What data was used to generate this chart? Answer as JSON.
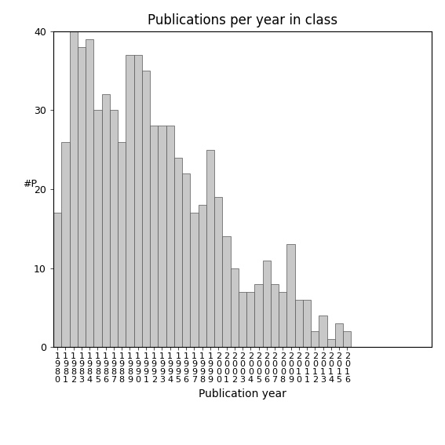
{
  "title": "Publications per year in class",
  "xlabel": "Publication year",
  "ylabel": "#P",
  "years": [
    1980,
    1981,
    1982,
    1983,
    1984,
    1985,
    1986,
    1987,
    1988,
    1989,
    1990,
    1991,
    1992,
    1993,
    1994,
    1995,
    1996,
    1997,
    1998,
    1999,
    2000,
    2001,
    2002,
    2003,
    2004,
    2005,
    2006,
    2007,
    2008,
    2009,
    2010,
    2011,
    2012,
    2013,
    2014,
    2015,
    2016
  ],
  "values": [
    17,
    26,
    40,
    38,
    39,
    30,
    32,
    30,
    26,
    37,
    37,
    35,
    28,
    28,
    28,
    24,
    22,
    17,
    18,
    25,
    19,
    14,
    10,
    7,
    7,
    8,
    11,
    8,
    7,
    13,
    6,
    6,
    2,
    4,
    1,
    3,
    2
  ],
  "bar_color": "#c8c8c8",
  "bar_edgecolor": "#555555",
  "bar_linewidth": 0.5,
  "ylim": [
    0,
    40
  ],
  "yticks": [
    0,
    10,
    20,
    30,
    40
  ],
  "bg_color": "#ffffff",
  "title_fontsize": 12,
  "axis_label_fontsize": 10,
  "tick_fontsize": 8,
  "ylabel_fontsize": 9
}
